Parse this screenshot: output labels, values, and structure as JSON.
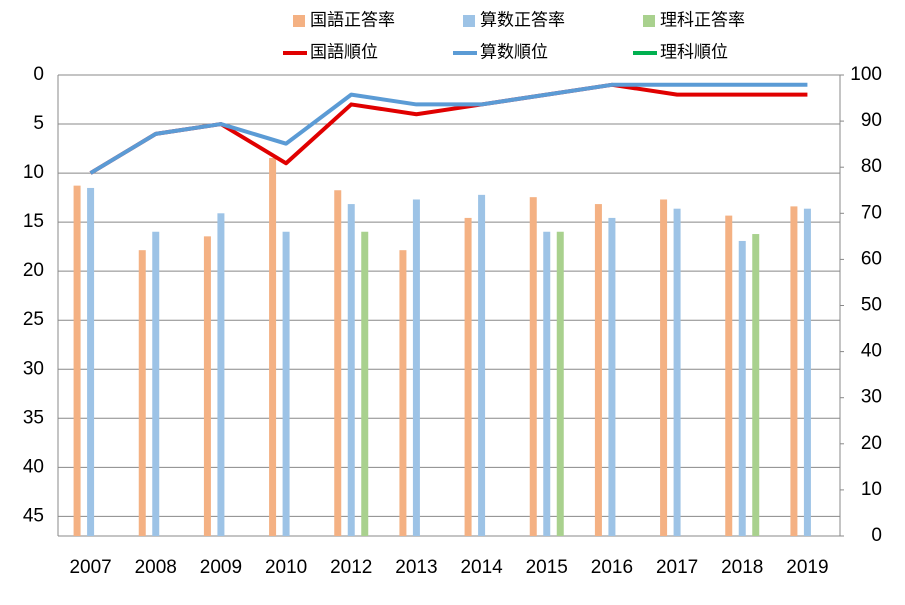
{
  "chart_data": {
    "type": "bar",
    "categories": [
      "2007",
      "2008",
      "2009",
      "2010",
      "2012",
      "2013",
      "2014",
      "2015",
      "2016",
      "2017",
      "2018",
      "2019"
    ],
    "series": [
      {
        "name": "国語正答率",
        "type": "bar",
        "axis": "y2",
        "color": "#f4b183",
        "values": [
          76,
          62,
          65,
          82,
          75,
          62,
          69,
          73.5,
          72,
          73,
          69.5,
          71.5
        ]
      },
      {
        "name": "算数正答率",
        "type": "bar",
        "axis": "y2",
        "color": "#9dc3e6",
        "values": [
          75.5,
          66,
          70,
          66,
          72,
          73,
          74,
          66,
          69,
          71,
          64,
          71
        ]
      },
      {
        "name": "理科正答率",
        "type": "bar",
        "axis": "y2",
        "color": "#a9d18e",
        "values": [
          null,
          null,
          null,
          null,
          66,
          null,
          null,
          66,
          null,
          null,
          65.5,
          null
        ]
      },
      {
        "name": "国語順位",
        "type": "line",
        "color": "#e00000",
        "values": [
          10,
          6,
          5,
          9,
          3,
          4,
          3,
          2,
          1,
          2,
          2,
          2
        ]
      },
      {
        "name": "算数順位",
        "type": "line",
        "color": "#5b9bd5",
        "values": [
          10,
          6,
          5,
          7,
          2,
          3,
          3,
          2,
          1,
          1,
          1,
          1
        ]
      },
      {
        "name": "理科順位",
        "type": "line",
        "color": "#00b050",
        "values": [
          null,
          null,
          null,
          null,
          null,
          null,
          null,
          null,
          null,
          null,
          null,
          null
        ]
      }
    ],
    "ylim": [
      0,
      47
    ],
    "yticks": [
      0,
      5,
      10,
      15,
      20,
      25,
      30,
      35,
      40,
      45
    ],
    "y_inverted": true,
    "y2lim": [
      0,
      100
    ],
    "y2ticks": [
      0,
      10,
      20,
      30,
      40,
      50,
      60,
      70,
      80,
      90,
      100
    ],
    "grid": true
  }
}
